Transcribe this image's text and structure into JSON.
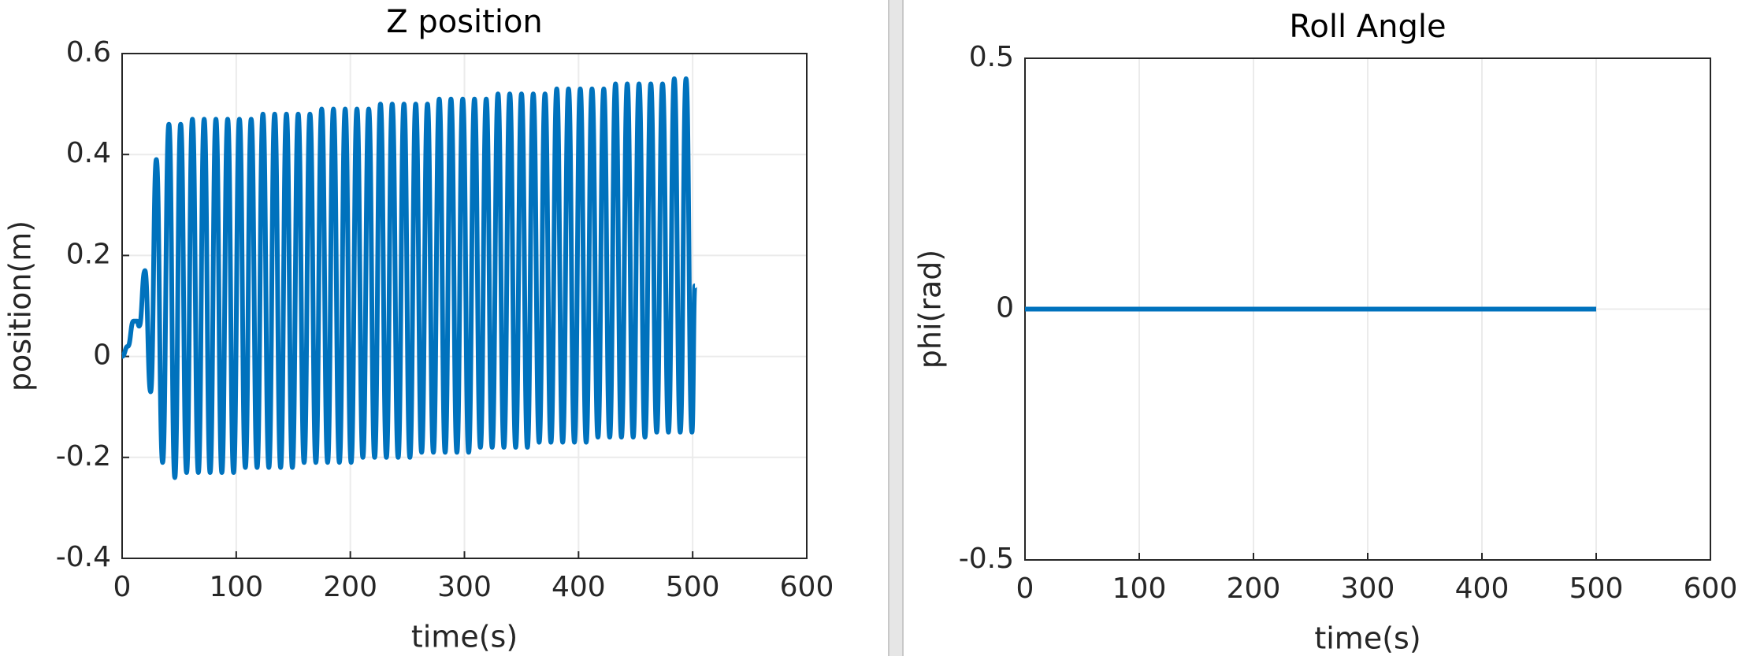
{
  "chart_data": [
    {
      "type": "line",
      "title": "Z position",
      "x_label": "time(s)",
      "y_label": "position(m)",
      "xlim": [
        0,
        600
      ],
      "xticks": [
        0,
        100,
        200,
        300,
        400,
        500,
        600
      ],
      "ylim": [
        -0.4,
        0.6
      ],
      "yticks": [
        -0.4,
        -0.2,
        0,
        0.2,
        0.4,
        0.6
      ],
      "grid": true,
      "series": [
        {
          "color": "#0072bd",
          "x": [
            0,
            5,
            10,
            13,
            15,
            20,
            25,
            30,
            35.5,
            41,
            46.2,
            51.3,
            56.5,
            61.6,
            66.8,
            71.9,
            77.1,
            82.2,
            87.4,
            92.5,
            97.7,
            102.8,
            108,
            113.1,
            118.3,
            123.4,
            128.6,
            133.7,
            138.9,
            144,
            149.2,
            154.3,
            159.5,
            164.6,
            169.8,
            174.9,
            180.1,
            185.2,
            190.4,
            195.5,
            200.7,
            205.8,
            211,
            216.1,
            221.3,
            226.4,
            231.6,
            236.7,
            241.9,
            247,
            252.2,
            257.3,
            262.5,
            267.6,
            272.8,
            277.9,
            283.1,
            288.2,
            293.4,
            298.5,
            303.7,
            308.8,
            314,
            319.1,
            324.3,
            329.4,
            334.6,
            339.7,
            344.9,
            350,
            355.2,
            360.3,
            365.5,
            370.6,
            375.8,
            380.9,
            386.1,
            391.2,
            396.4,
            401.5,
            406.7,
            411.8,
            417,
            422.1,
            427.3,
            432.4,
            437.6,
            442.7,
            447.9,
            453,
            458.2,
            463.3,
            468.5,
            473.6,
            478.8,
            483.9,
            489.1,
            494.2,
            499.4,
            502
          ],
          "values": [
            0,
            0.02,
            0.07,
            0.07,
            0.06,
            0.17,
            -0.07,
            0.39,
            -0.21,
            0.46,
            -0.24,
            0.46,
            -0.23,
            0.47,
            -0.23,
            0.47,
            -0.23,
            0.47,
            -0.23,
            0.47,
            -0.23,
            0.47,
            -0.22,
            0.47,
            -0.22,
            0.48,
            -0.22,
            0.48,
            -0.22,
            0.48,
            -0.22,
            0.48,
            -0.21,
            0.48,
            -0.21,
            0.49,
            -0.21,
            0.49,
            -0.21,
            0.49,
            -0.21,
            0.49,
            -0.2,
            0.49,
            -0.2,
            0.5,
            -0.2,
            0.5,
            -0.2,
            0.5,
            -0.2,
            0.5,
            -0.19,
            0.5,
            -0.19,
            0.51,
            -0.19,
            0.51,
            -0.19,
            0.51,
            -0.19,
            0.51,
            -0.18,
            0.51,
            -0.18,
            0.52,
            -0.18,
            0.52,
            -0.18,
            0.52,
            -0.18,
            0.52,
            -0.17,
            0.52,
            -0.17,
            0.53,
            -0.17,
            0.53,
            -0.17,
            0.53,
            -0.17,
            0.53,
            -0.16,
            0.53,
            -0.16,
            0.54,
            -0.16,
            0.54,
            -0.16,
            0.54,
            -0.16,
            0.54,
            -0.15,
            0.54,
            -0.15,
            0.55,
            -0.15,
            0.55,
            -0.15,
            0.14
          ]
        }
      ]
    },
    {
      "type": "line",
      "title": "Roll Angle",
      "x_label": "time(s)",
      "y_label": "phi(rad)",
      "xlim": [
        0,
        600
      ],
      "xticks": [
        0,
        100,
        200,
        300,
        400,
        500,
        600
      ],
      "ylim": [
        -0.5,
        0.5
      ],
      "yticks": [
        -0.5,
        0,
        0.5
      ],
      "grid": true,
      "series": [
        {
          "color": "#0072bd",
          "x": [
            0,
            500
          ],
          "values": [
            0,
            0
          ]
        }
      ]
    }
  ]
}
